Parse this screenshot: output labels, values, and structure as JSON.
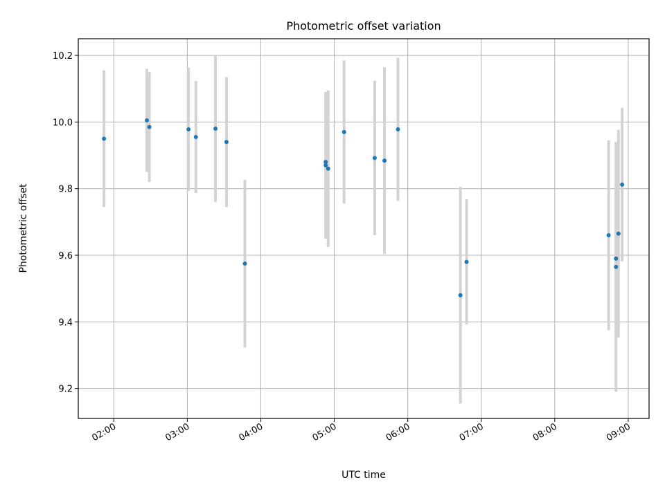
{
  "chart_data": {
    "type": "scatter",
    "title": "Photometric offset variation",
    "xlabel": "UTC time",
    "ylabel": "Photometric offset",
    "x_ticks": [
      "02:00",
      "03:00",
      "04:00",
      "05:00",
      "06:00",
      "07:00",
      "08:00",
      "09:00"
    ],
    "y_ticks": [
      "9.2",
      "9.4",
      "9.6",
      "9.8",
      "10.0",
      "10.2"
    ],
    "xlim": [
      "01:31",
      "09:17"
    ],
    "ylim": [
      9.11,
      10.25
    ],
    "grid": true,
    "colors": {
      "marker": "#1f77b4",
      "errorbar": "#d3d3d3"
    },
    "series": [
      {
        "points": [
          {
            "x": "01:52",
            "y": 9.95,
            "err": 0.205
          },
          {
            "x": "02:27",
            "y": 10.005,
            "err": 0.155
          },
          {
            "x": "02:29",
            "y": 9.985,
            "err": 0.165
          },
          {
            "x": "03:01",
            "y": 9.978,
            "err": 0.185
          },
          {
            "x": "03:07",
            "y": 9.955,
            "err": 0.168
          },
          {
            "x": "03:23",
            "y": 9.98,
            "err": 0.22
          },
          {
            "x": "03:32",
            "y": 9.94,
            "err": 0.195
          },
          {
            "x": "03:47",
            "y": 9.575,
            "err": 0.252
          },
          {
            "x": "04:53",
            "y": 9.88,
            "err": 0.205
          },
          {
            "x": "04:53",
            "y": 9.87,
            "err": 0.22
          },
          {
            "x": "04:55",
            "y": 9.86,
            "err": 0.235
          },
          {
            "x": "05:08",
            "y": 9.97,
            "err": 0.215
          },
          {
            "x": "05:33",
            "y": 9.892,
            "err": 0.232
          },
          {
            "x": "05:41",
            "y": 9.884,
            "err": 0.28
          },
          {
            "x": "05:52",
            "y": 9.978,
            "err": 0.215
          },
          {
            "x": "06:43",
            "y": 9.48,
            "err": 0.325
          },
          {
            "x": "06:48",
            "y": 9.58,
            "err": 0.188
          },
          {
            "x": "08:44",
            "y": 9.66,
            "err": 0.285
          },
          {
            "x": "08:50",
            "y": 9.59,
            "err": 0.22
          },
          {
            "x": "08:50",
            "y": 9.565,
            "err": 0.375
          },
          {
            "x": "08:52",
            "y": 9.665,
            "err": 0.312
          },
          {
            "x": "08:55",
            "y": 9.812,
            "err": 0.23
          }
        ]
      }
    ]
  }
}
